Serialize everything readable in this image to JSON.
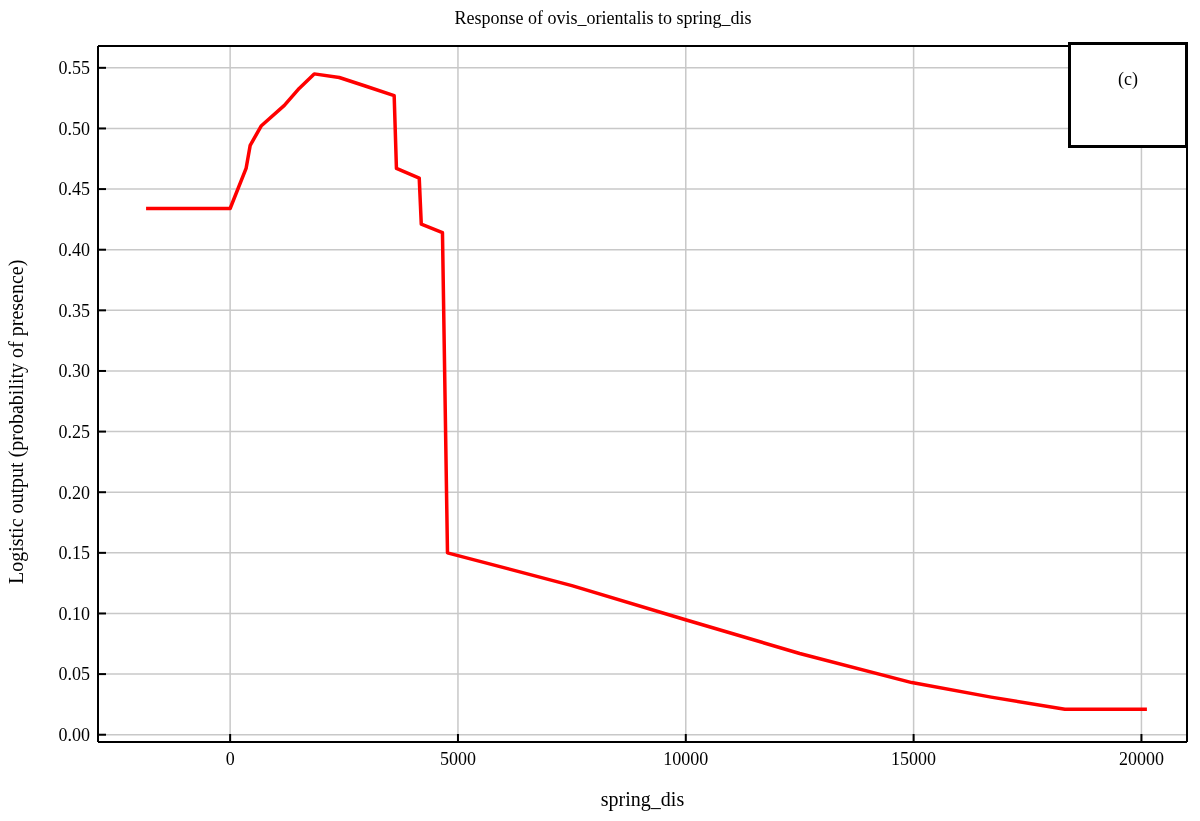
{
  "chart_data": {
    "type": "line",
    "title": "Response of ovis_orientalis to spring_dis",
    "xlabel": "spring_dis",
    "ylabel": "Logistic output (probability of presence)",
    "annotations": [
      "(c)"
    ],
    "series": [
      {
        "color": "#ff0000",
        "x": [
          -1845,
          0,
          350,
          440,
          680,
          1190,
          1515,
          1845,
          2395,
          2965,
          3600,
          3650,
          4150,
          4195,
          4660,
          4770,
          7500,
          9975,
          12500,
          14960,
          16700,
          18320,
          20120
        ],
        "values": [
          0.434,
          0.434,
          0.467,
          0.486,
          0.502,
          0.519,
          0.533,
          0.545,
          0.542,
          0.535,
          0.527,
          0.467,
          0.459,
          0.421,
          0.414,
          0.15,
          0.123,
          0.095,
          0.067,
          0.043,
          0.031,
          0.021,
          0.021
        ]
      }
    ],
    "xlim": [
      -2900,
      21000
    ],
    "xticks": [
      0,
      5000,
      10000,
      15000,
      20000
    ],
    "ylim": [
      -0.006,
      0.568
    ],
    "yticks": [
      {
        "value": 0,
        "label": "0.00"
      },
      {
        "value": 0.05,
        "label": "0.05"
      },
      {
        "value": 0.1,
        "label": "0.10"
      },
      {
        "value": 0.15,
        "label": "0.15"
      },
      {
        "value": 0.2,
        "label": "0.20"
      },
      {
        "value": 0.25,
        "label": "0.25"
      },
      {
        "value": 0.3,
        "label": "0.30"
      },
      {
        "value": 0.35,
        "label": "0.35"
      },
      {
        "value": 0.4,
        "label": "0.40"
      },
      {
        "value": 0.45,
        "label": "0.45"
      },
      {
        "value": 0.5,
        "label": "0.50"
      },
      {
        "value": 0.55,
        "label": "0.55"
      }
    ],
    "grid": true,
    "legend": false,
    "marker": "none",
    "line_style": "solid"
  }
}
